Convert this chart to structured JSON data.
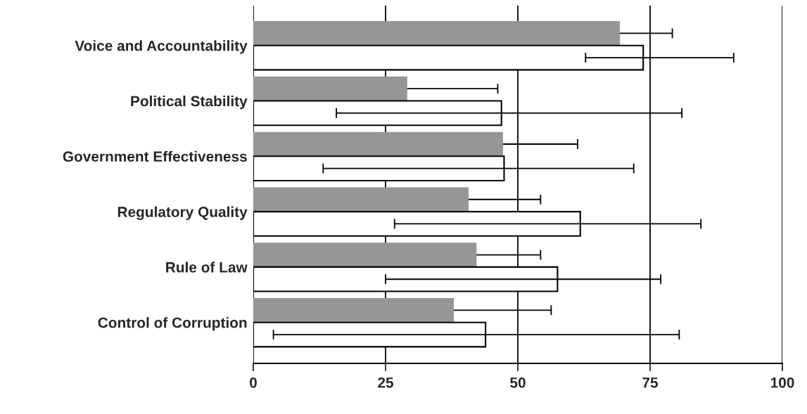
{
  "chart_data": {
    "type": "bar",
    "orientation": "horizontal",
    "categories": [
      "Voice and Accountability",
      "Political Stability",
      "Government Effectiveness",
      "Regulatory Quality",
      "Rule of Law",
      "Control of Corruption"
    ],
    "series": [
      {
        "color": "#969696",
        "values": [
          69.3,
          29.1,
          47.2,
          40.7,
          42.2,
          37.9
        ],
        "errors": [
          9.9,
          17.1,
          14.1,
          13.6,
          12.1,
          18.4
        ]
      },
      {
        "color": "#ffffff",
        "values": [
          73.7,
          46.9,
          47.4,
          61.8,
          57.5,
          43.9
        ],
        "errors": [
          [
            62.8,
            90.8
          ],
          [
            15.7,
            81.0
          ],
          [
            13.2,
            71.9
          ],
          [
            26.7,
            84.6
          ],
          [
            25.0,
            77.0
          ],
          [
            3.8,
            80.5
          ]
        ]
      }
    ],
    "xlim": [
      0,
      100
    ],
    "xticks": [
      0,
      25,
      50,
      75,
      100
    ],
    "grid": "x"
  }
}
